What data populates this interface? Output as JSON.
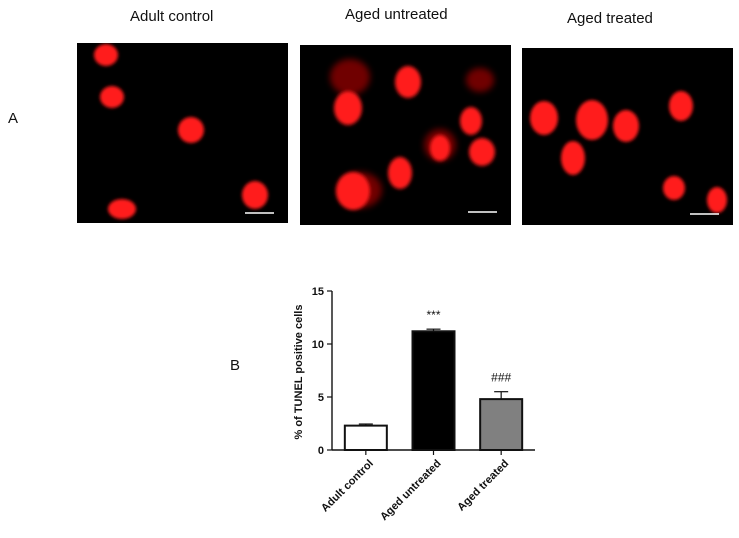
{
  "panel_a": {
    "label": "A",
    "titles": [
      "Adult control",
      "Aged untreated",
      "Aged treated"
    ]
  },
  "panel_b": {
    "label": "B"
  },
  "colors": {
    "nucleus": "#ff1a1a",
    "background": "#000000",
    "bar_adult": "#ffffff",
    "bar_untreated": "#000000",
    "bar_treated": "#808080"
  },
  "chart_data": {
    "type": "bar",
    "categories": [
      "Adult control",
      "Aged untreated",
      "Aged treated"
    ],
    "values": [
      2.3,
      11.2,
      4.8
    ],
    "errors": [
      0.15,
      0.2,
      0.7
    ],
    "annotations": [
      "",
      "***",
      "###"
    ],
    "ylabel": "% of TUNEL positive cells",
    "xlabel": "",
    "ylim": [
      0,
      15
    ],
    "yticks": [
      0,
      5,
      10,
      15
    ],
    "grid": false
  }
}
